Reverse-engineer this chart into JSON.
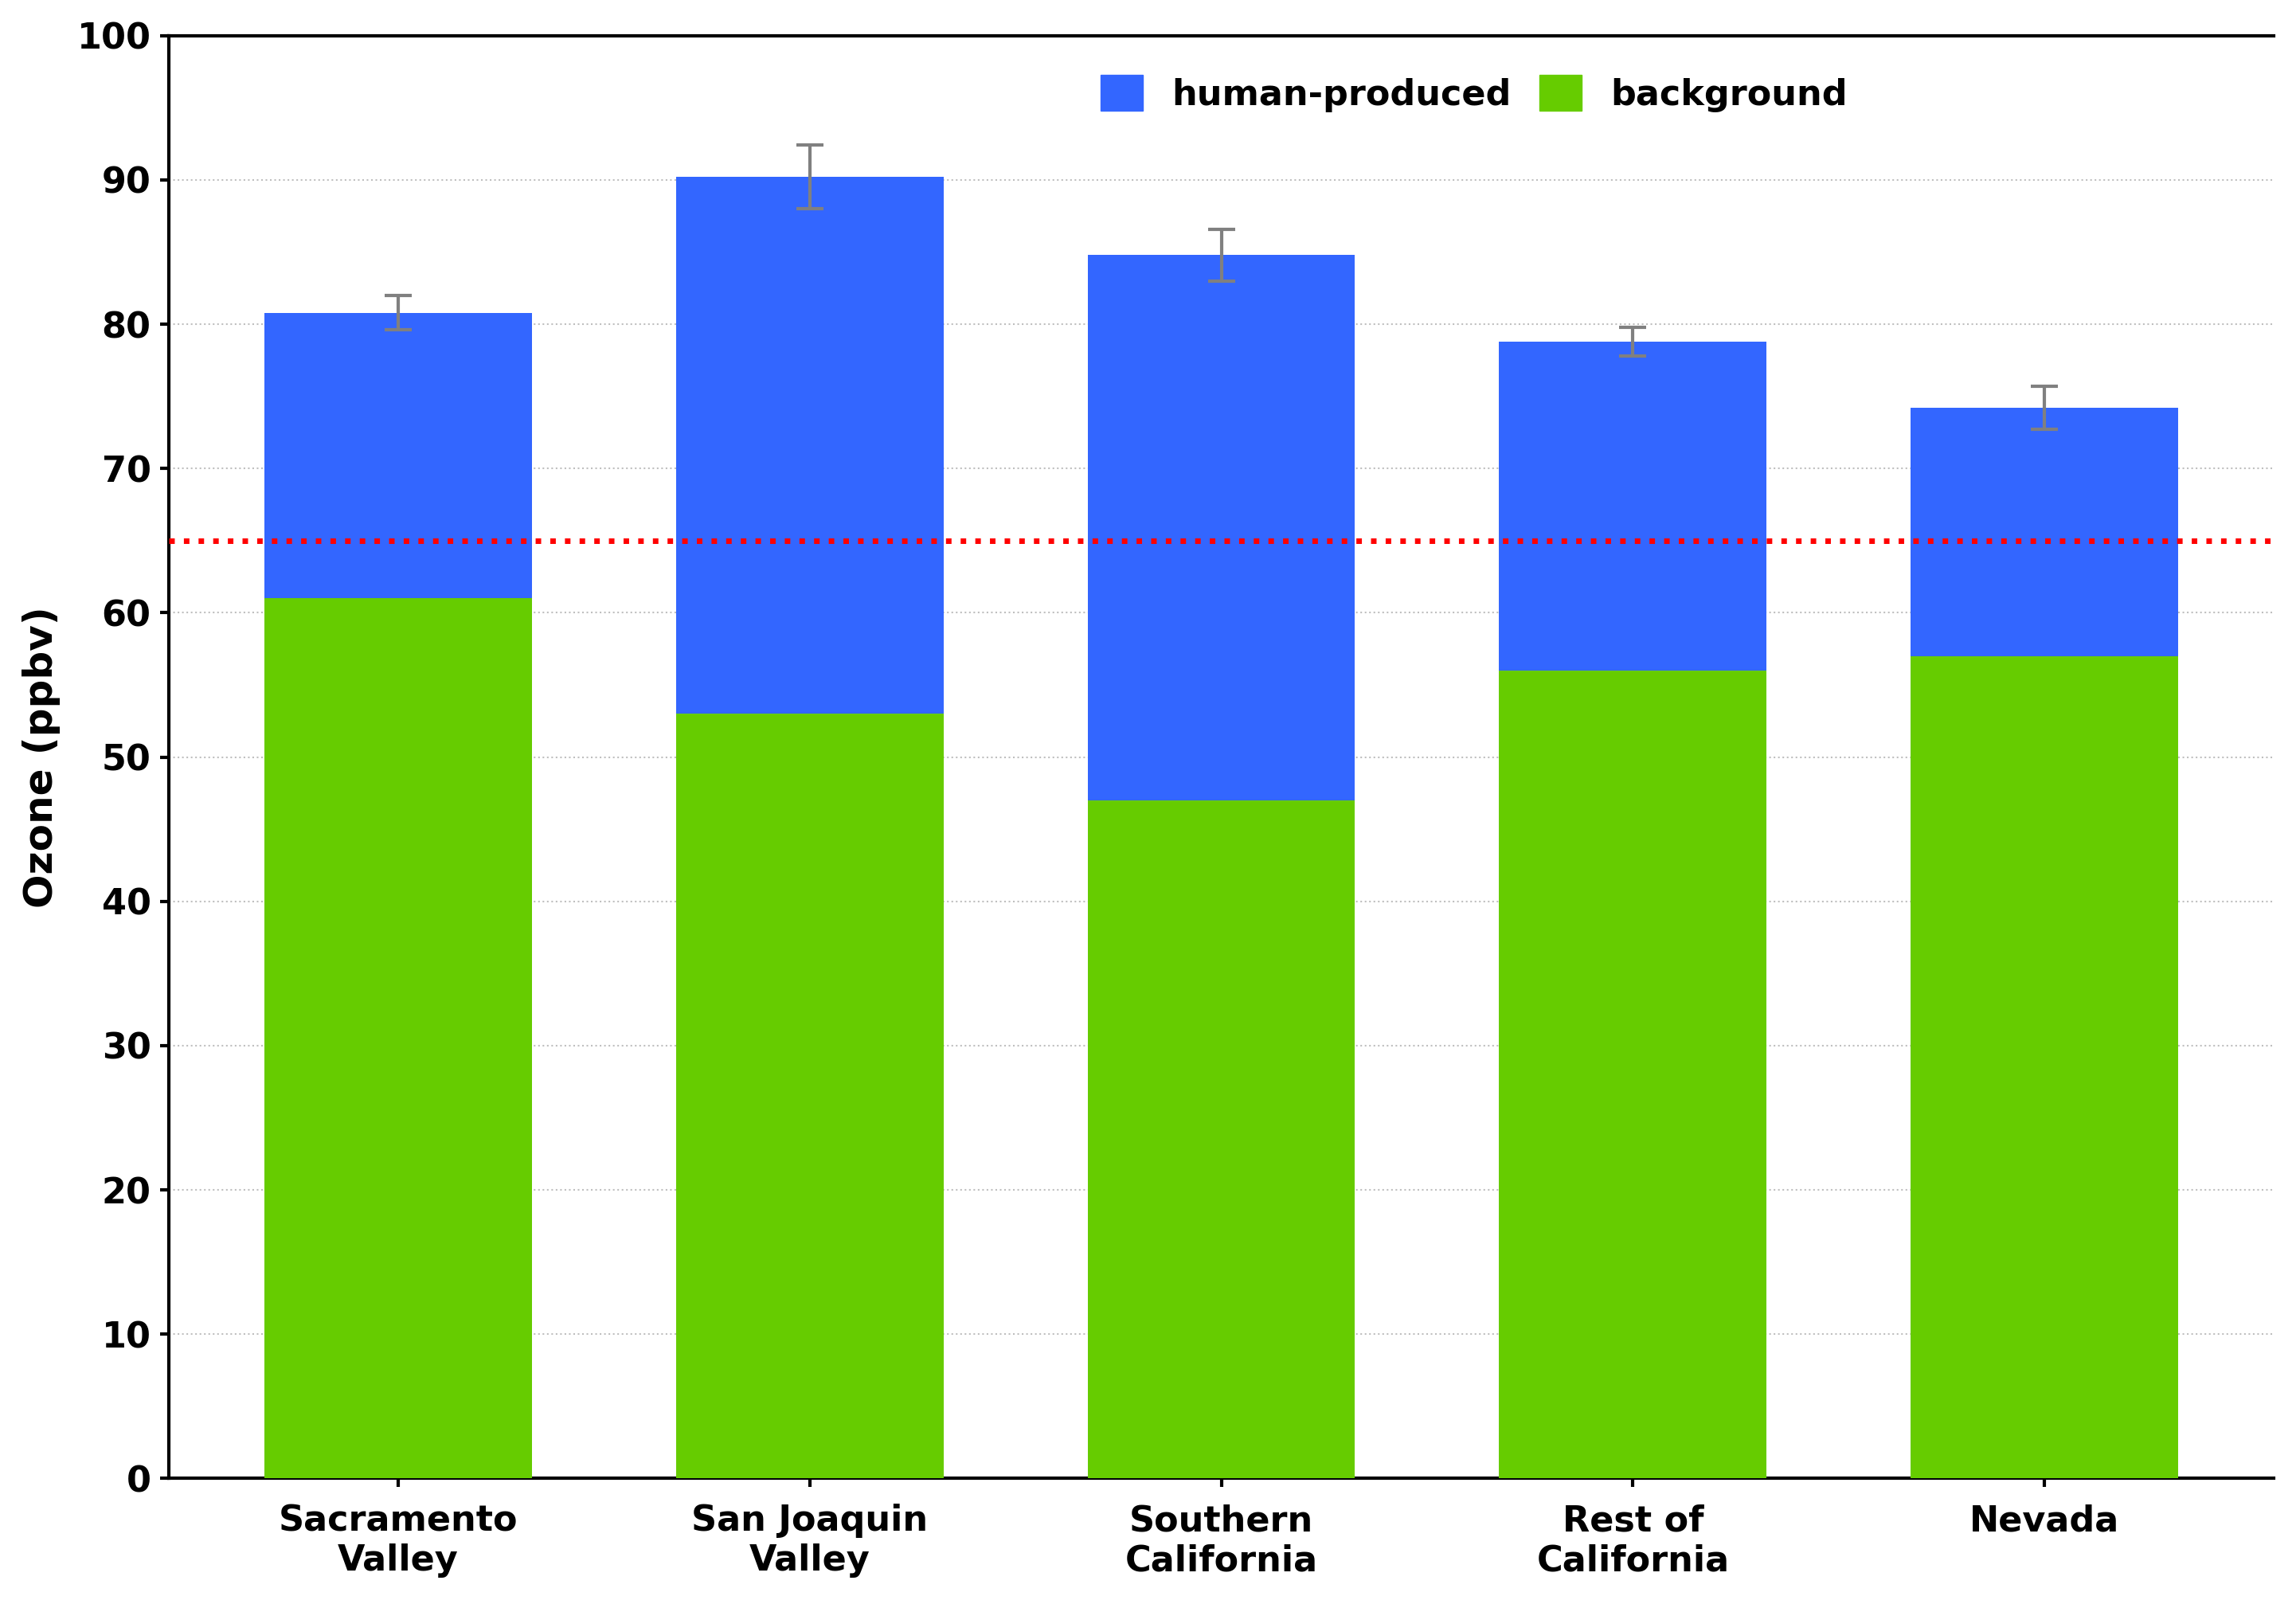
{
  "categories": [
    "Sacramento\nValley",
    "San Joaquin\nValley",
    "Southern\nCalifornia",
    "Rest of\nCalifornia",
    "Nevada"
  ],
  "background": [
    61,
    53,
    47,
    56,
    57
  ],
  "total": [
    80.8,
    90.2,
    84.8,
    78.8,
    74.2
  ],
  "error": [
    1.2,
    2.2,
    1.8,
    1.0,
    1.5
  ],
  "background_color": "#66cc00",
  "human_color": "#3366ff",
  "error_color": "#808080",
  "ref_line_y": 65,
  "ref_line_color": "#ff0000",
  "ylabel": "Ozone (ppbv)",
  "ylim": [
    0,
    100
  ],
  "yticks": [
    0,
    10,
    20,
    30,
    40,
    50,
    60,
    70,
    80,
    90,
    100
  ],
  "legend_labels": [
    "human-produced",
    "background"
  ],
  "legend_colors": [
    "#3366ff",
    "#66cc00"
  ],
  "background_color_fig": "#ffffff",
  "bar_width": 0.65,
  "grid_color": "#000000",
  "grid_alpha": 0.25,
  "grid_linestyle": "dotted",
  "title_fontsize": 32,
  "tick_fontsize": 32,
  "ylabel_fontsize": 36,
  "legend_fontsize": 32
}
